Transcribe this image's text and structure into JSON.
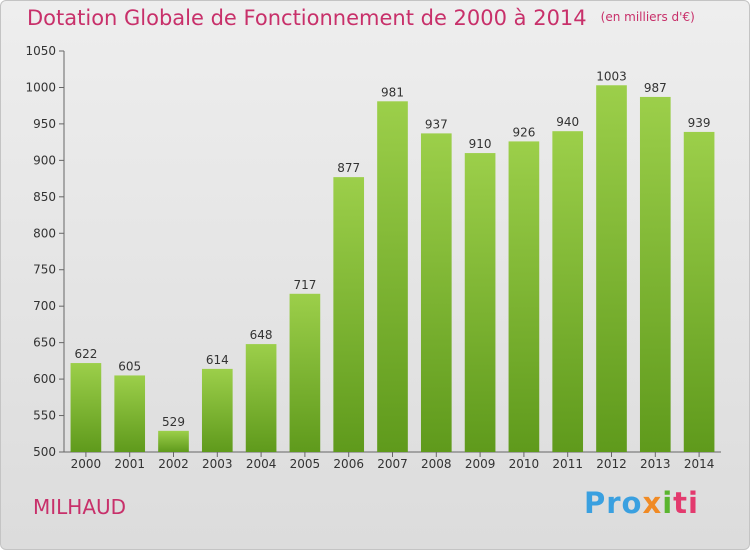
{
  "header": {
    "title": "Dotation Globale de Fonctionnement de 2000 à 2014",
    "subtitle": "(en milliers d'€)"
  },
  "footer": {
    "commune": "MILHAUD",
    "logo": [
      "Pro",
      "x",
      "i",
      "ti"
    ]
  },
  "colors": {
    "title": "#c8306a",
    "bar_light": "#9ccf4a",
    "bar_dark": "#5f9a1c"
  },
  "chart_data": {
    "type": "bar",
    "title": "Dotation Globale de Fonctionnement de 2000 à 2014",
    "subtitle": "(en milliers d'€)",
    "categories": [
      "2000",
      "2001",
      "2002",
      "2003",
      "2004",
      "2005",
      "2006",
      "2007",
      "2008",
      "2009",
      "2010",
      "2011",
      "2012",
      "2013",
      "2014"
    ],
    "values": [
      622,
      605,
      529,
      614,
      648,
      717,
      877,
      981,
      937,
      910,
      926,
      940,
      1003,
      987,
      939
    ],
    "ylim": [
      500,
      1050
    ],
    "yticks": [
      500,
      550,
      600,
      650,
      700,
      750,
      800,
      850,
      900,
      950,
      1000,
      1050
    ],
    "grid": false,
    "legend": "none"
  }
}
